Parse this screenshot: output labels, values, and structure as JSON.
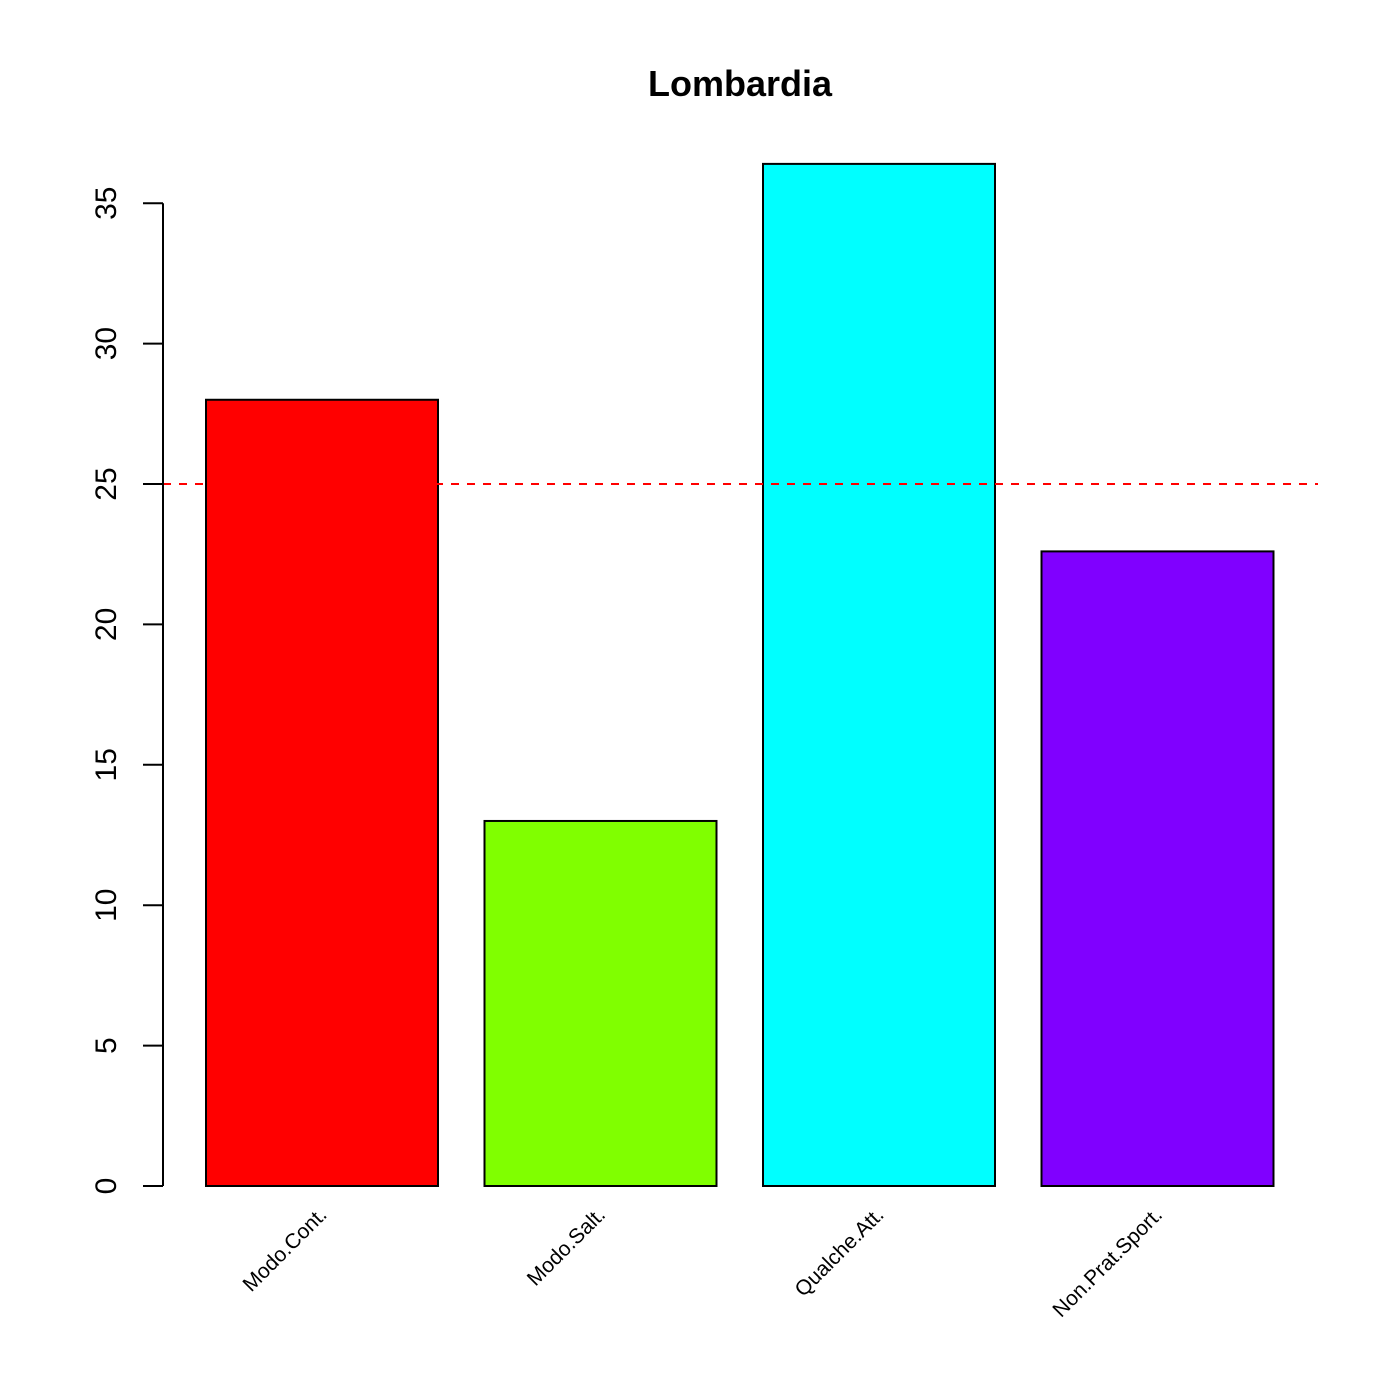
{
  "chart_data": {
    "type": "bar",
    "title": "Lombardia",
    "xlabel": "",
    "ylabel": "",
    "categories": [
      "Modo.Cont.",
      "Modo.Salt.",
      "Qualche.Att.",
      "Non.Prat.Sport."
    ],
    "values": [
      28.0,
      13.0,
      36.4,
      22.6
    ],
    "colors": [
      "#FF0000",
      "#80FF00",
      "#00FFFF",
      "#8000FF"
    ],
    "ylim": [
      0,
      35
    ],
    "yticks": [
      "0",
      "5",
      "10",
      "15",
      "20",
      "25",
      "30",
      "35"
    ],
    "reference_line": {
      "y": 25,
      "color": "#FF0000",
      "style": "dashed"
    },
    "grid": false,
    "legend": "none"
  }
}
